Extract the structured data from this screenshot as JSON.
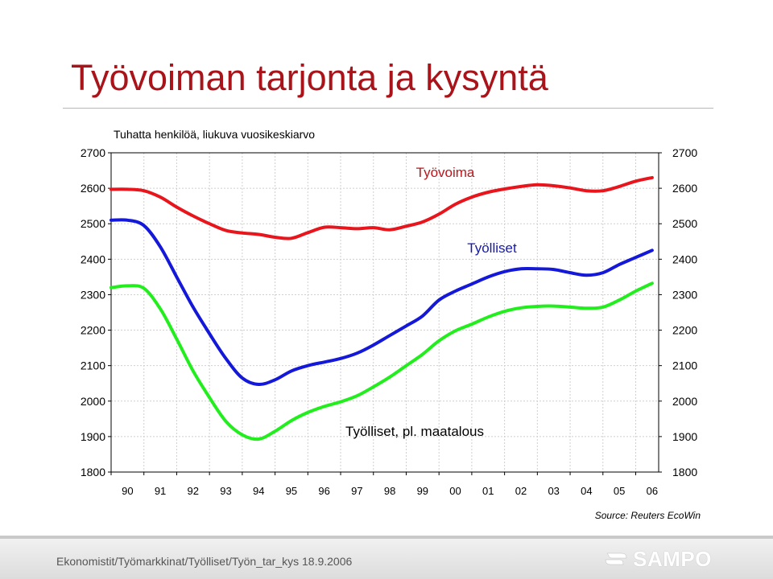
{
  "slide": {
    "title": "Työvoiman tarjonta ja kysyntä",
    "source": "Source: Reuters EcoWin"
  },
  "footer": {
    "path_text": "Ekonomistit/Työmarkkinat/Työlliset/Työn_tar_kys   18.9.2006",
    "logo_text": "SAMPO"
  },
  "colors": {
    "title": "#a8141a",
    "labour_force": "#e8161c",
    "employed": "#1418d8",
    "employed_non_agri": "#22ee1e"
  },
  "chart_data": {
    "type": "line",
    "subtitle": "Tuhatta henkilöä, liukuva vuosikeskiarvo",
    "x_tick_labels": [
      "90",
      "91",
      "92",
      "93",
      "94",
      "95",
      "96",
      "97",
      "98",
      "99",
      "00",
      "01",
      "02",
      "03",
      "04",
      "05",
      "06"
    ],
    "xlim": [
      1990.0,
      2006.7
    ],
    "ylim": [
      1800,
      2700
    ],
    "yticks": [
      1800,
      1900,
      2000,
      2100,
      2200,
      2300,
      2400,
      2500,
      2600,
      2700
    ],
    "y_axis_both_sides": true,
    "grid": true,
    "series": [
      {
        "name": "Työvoima",
        "color": "#e8161c",
        "x": [
          1990.0,
          1990.5,
          1991.0,
          1991.5,
          1992.0,
          1992.5,
          1993.0,
          1993.5,
          1994.0,
          1994.5,
          1995.0,
          1995.5,
          1996.0,
          1996.5,
          1997.0,
          1997.5,
          1998.0,
          1998.5,
          1999.0,
          1999.5,
          2000.0,
          2000.5,
          2001.0,
          2001.5,
          2002.0,
          2002.5,
          2003.0,
          2003.5,
          2004.0,
          2004.5,
          2005.0,
          2005.5,
          2006.0,
          2006.5
        ],
        "values": [
          2597,
          2597,
          2593,
          2575,
          2547,
          2522,
          2500,
          2481,
          2474,
          2470,
          2462,
          2459,
          2475,
          2490,
          2489,
          2486,
          2489,
          2483,
          2493,
          2505,
          2527,
          2555,
          2575,
          2589,
          2598,
          2605,
          2610,
          2607,
          2601,
          2593,
          2593,
          2605,
          2620,
          2630
        ]
      },
      {
        "name": "Työlliset",
        "color": "#1418d8",
        "x": [
          1990.0,
          1990.5,
          1991.0,
          1991.5,
          1992.0,
          1992.5,
          1993.0,
          1993.5,
          1994.0,
          1994.5,
          1995.0,
          1995.5,
          1996.0,
          1996.5,
          1997.0,
          1997.5,
          1998.0,
          1998.5,
          1999.0,
          1999.5,
          2000.0,
          2000.5,
          2001.0,
          2001.5,
          2002.0,
          2002.5,
          2003.0,
          2003.5,
          2004.0,
          2004.5,
          2005.0,
          2005.5,
          2006.0,
          2006.5
        ],
        "values": [
          2510,
          2510,
          2495,
          2435,
          2350,
          2265,
          2190,
          2120,
          2065,
          2047,
          2060,
          2085,
          2100,
          2110,
          2120,
          2135,
          2158,
          2185,
          2212,
          2240,
          2285,
          2310,
          2330,
          2350,
          2365,
          2373,
          2373,
          2371,
          2362,
          2355,
          2362,
          2385,
          2405,
          2425
        ]
      },
      {
        "name": "Työlliset, pl. maatalous",
        "color": "#22ee1e",
        "x": [
          1990.0,
          1990.5,
          1991.0,
          1991.5,
          1992.0,
          1992.5,
          1993.0,
          1993.5,
          1994.0,
          1994.5,
          1995.0,
          1995.5,
          1996.0,
          1996.5,
          1997.0,
          1997.5,
          1998.0,
          1998.5,
          1999.0,
          1999.5,
          2000.0,
          2000.5,
          2001.0,
          2001.5,
          2002.0,
          2002.5,
          2003.0,
          2003.5,
          2004.0,
          2004.5,
          2005.0,
          2005.5,
          2006.0,
          2006.5
        ],
        "values": [
          2320,
          2325,
          2318,
          2260,
          2175,
          2085,
          2010,
          1943,
          1905,
          1893,
          1915,
          1945,
          1968,
          1985,
          1998,
          2015,
          2040,
          2068,
          2100,
          2132,
          2170,
          2198,
          2217,
          2237,
          2253,
          2263,
          2267,
          2268,
          2265,
          2262,
          2265,
          2285,
          2310,
          2332
        ]
      }
    ],
    "series_label_positions": [
      {
        "text": "Työvoima",
        "near": "above red line, center"
      },
      {
        "text": "Työlliset",
        "near": "between red and blue lines, right of center"
      },
      {
        "text": "Työlliset, pl. maatalous",
        "near": "below curves, center"
      }
    ]
  }
}
